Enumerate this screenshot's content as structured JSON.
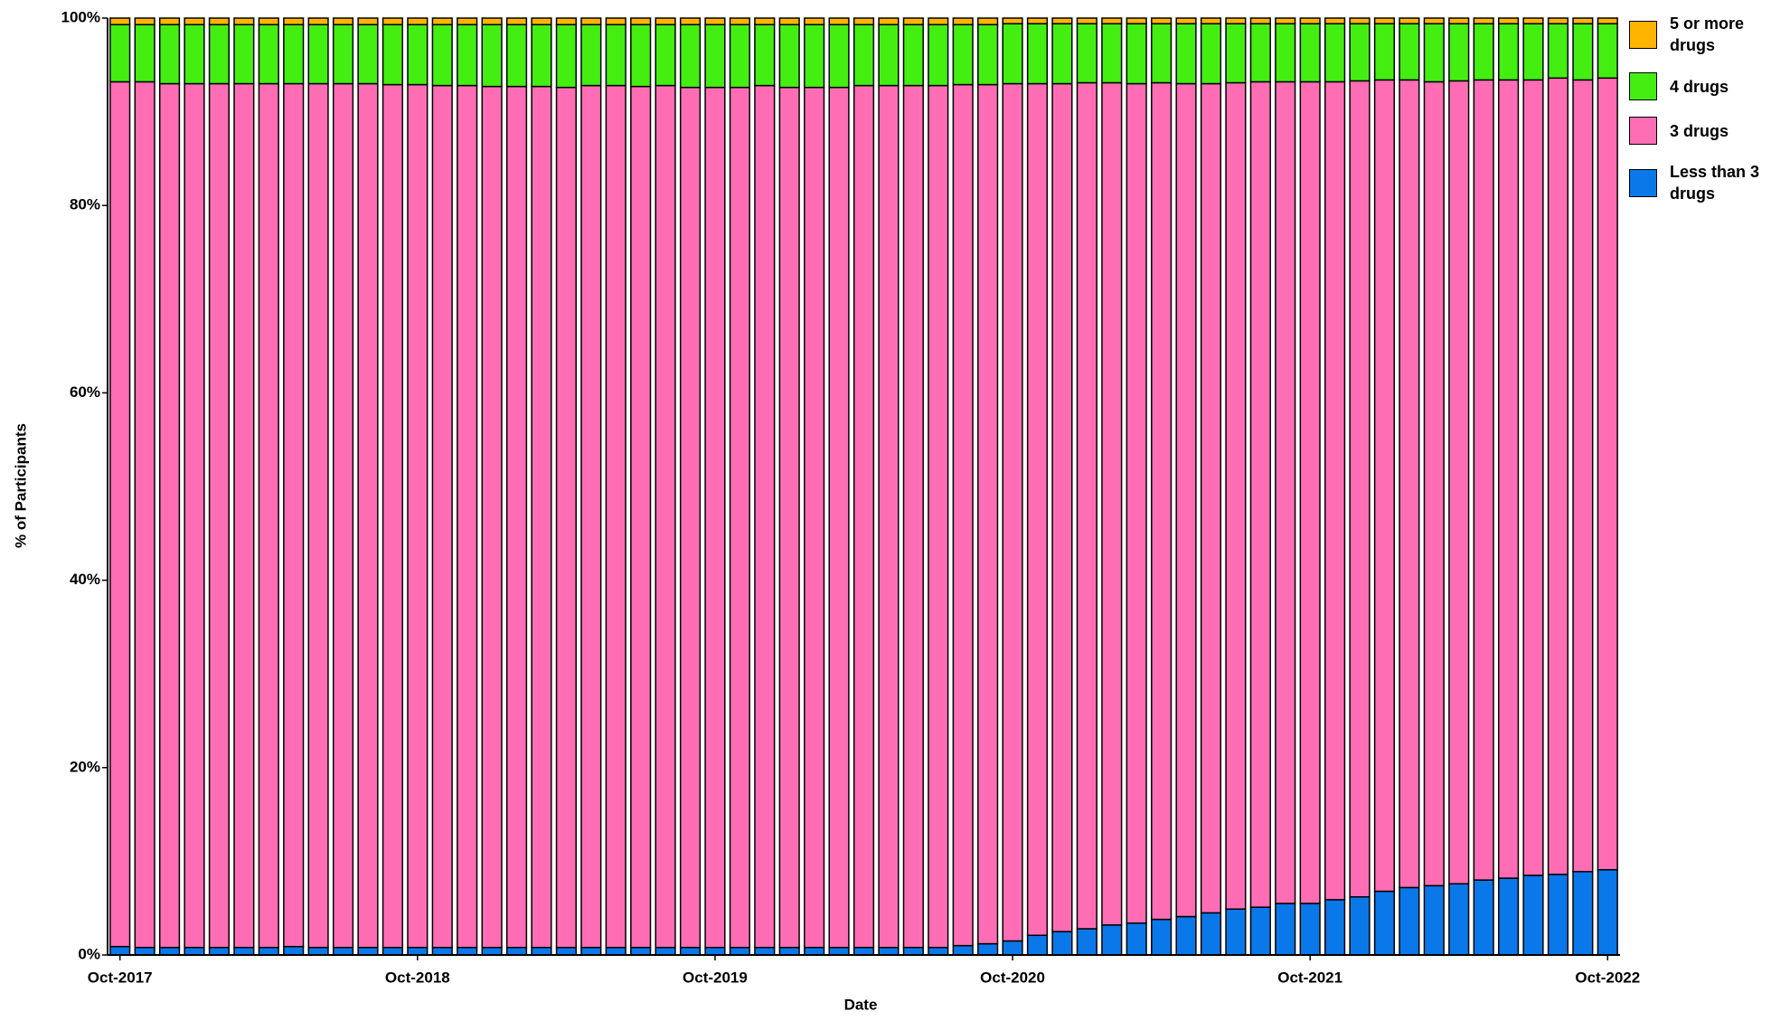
{
  "chart_data": {
    "type": "stacked_bar",
    "x_label": "Date",
    "y_label": "% of Participants",
    "categories": [
      "Oct-2017",
      null,
      null,
      null,
      null,
      null,
      null,
      null,
      null,
      null,
      null,
      null,
      "Oct-2018",
      null,
      null,
      null,
      null,
      null,
      null,
      null,
      null,
      null,
      null,
      null,
      "Oct-2019",
      null,
      null,
      null,
      null,
      null,
      null,
      null,
      null,
      null,
      null,
      null,
      "Oct-2020",
      null,
      null,
      null,
      null,
      null,
      null,
      null,
      null,
      null,
      null,
      null,
      "Oct-2021",
      null,
      null,
      null,
      null,
      null,
      null,
      null,
      null,
      null,
      null,
      null,
      "Oct-2022"
    ],
    "ylim": [
      0,
      100
    ],
    "yticks": [
      {
        "value": 0,
        "label": "0%"
      },
      {
        "value": 20,
        "label": "20%"
      },
      {
        "value": 40,
        "label": "40%"
      },
      {
        "value": 60,
        "label": "60%"
      },
      {
        "value": 80,
        "label": "80%"
      },
      {
        "value": 100,
        "label": "100%"
      }
    ],
    "series": [
      {
        "name": "Less than 3 drugs",
        "color": "#0a78e8",
        "values": [
          0.9,
          0.8,
          0.8,
          0.8,
          0.8,
          0.8,
          0.8,
          0.9,
          0.8,
          0.8,
          0.8,
          0.8,
          0.8,
          0.8,
          0.8,
          0.8,
          0.8,
          0.8,
          0.8,
          0.8,
          0.8,
          0.8,
          0.8,
          0.8,
          0.8,
          0.8,
          0.8,
          0.8,
          0.8,
          0.8,
          0.8,
          0.8,
          0.8,
          0.8,
          1.0,
          1.2,
          1.5,
          2.1,
          2.5,
          2.8,
          3.2,
          3.4,
          3.8,
          4.1,
          4.5,
          4.9,
          5.1,
          5.5,
          5.5,
          5.9,
          6.2,
          6.8,
          7.2,
          7.4,
          7.6,
          8.0,
          8.2,
          8.5,
          8.6,
          8.9,
          9.1
        ]
      },
      {
        "name": "3 drugs",
        "color": "#ff6eb4",
        "values": [
          92.3,
          92.4,
          92.2,
          92.2,
          92.2,
          92.2,
          92.2,
          92.1,
          92.2,
          92.2,
          92.2,
          92.1,
          92.1,
          92.0,
          92.0,
          91.9,
          91.9,
          91.9,
          91.8,
          92.0,
          92.0,
          91.9,
          92.0,
          91.8,
          91.8,
          91.8,
          92.0,
          91.8,
          91.8,
          91.8,
          92.0,
          92.0,
          92.0,
          92.0,
          91.9,
          91.7,
          91.5,
          90.9,
          90.5,
          90.3,
          89.9,
          89.6,
          89.3,
          88.9,
          88.5,
          88.2,
          88.1,
          87.7,
          87.7,
          87.3,
          87.1,
          86.6,
          86.2,
          85.8,
          85.7,
          85.4,
          85.2,
          84.9,
          85.0,
          84.5,
          84.5
        ]
      },
      {
        "name": "4 drugs",
        "color": "#44ee11",
        "values": [
          6.1,
          6.1,
          6.3,
          6.3,
          6.3,
          6.3,
          6.3,
          6.3,
          6.3,
          6.3,
          6.3,
          6.4,
          6.4,
          6.5,
          6.5,
          6.6,
          6.6,
          6.6,
          6.7,
          6.5,
          6.5,
          6.6,
          6.5,
          6.7,
          6.7,
          6.7,
          6.5,
          6.7,
          6.7,
          6.7,
          6.5,
          6.5,
          6.5,
          6.5,
          6.4,
          6.4,
          6.4,
          6.4,
          6.4,
          6.3,
          6.3,
          6.4,
          6.3,
          6.4,
          6.4,
          6.3,
          6.2,
          6.2,
          6.2,
          6.2,
          6.1,
          6.0,
          6.0,
          6.2,
          6.1,
          6.0,
          6.0,
          6.0,
          5.8,
          6.0,
          5.8
        ]
      },
      {
        "name": "5 or more drugs",
        "color": "#ffb400",
        "values": [
          0.7,
          0.7,
          0.7,
          0.7,
          0.7,
          0.7,
          0.7,
          0.7,
          0.7,
          0.7,
          0.7,
          0.7,
          0.7,
          0.7,
          0.7,
          0.7,
          0.7,
          0.7,
          0.7,
          0.7,
          0.7,
          0.7,
          0.7,
          0.7,
          0.7,
          0.7,
          0.7,
          0.7,
          0.7,
          0.7,
          0.7,
          0.7,
          0.7,
          0.7,
          0.7,
          0.7,
          0.6,
          0.6,
          0.6,
          0.6,
          0.6,
          0.6,
          0.6,
          0.6,
          0.6,
          0.6,
          0.6,
          0.6,
          0.6,
          0.6,
          0.6,
          0.6,
          0.6,
          0.6,
          0.6,
          0.6,
          0.6,
          0.6,
          0.6,
          0.6,
          0.6
        ]
      }
    ],
    "legend_position": "right"
  }
}
